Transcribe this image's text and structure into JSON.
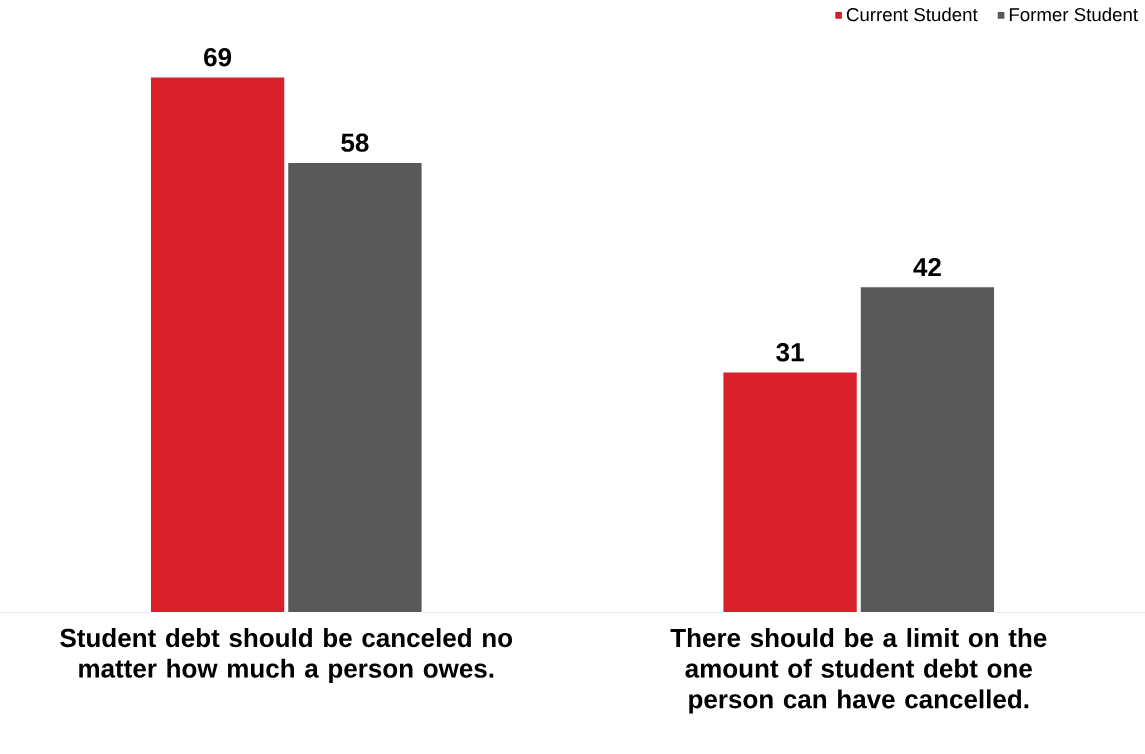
{
  "chart_data": {
    "type": "bar",
    "categories": [
      "**Student debt should be canceled no matter how much a person owes.**",
      "**There should be a limit on the amount of student debt one person can have cancelled.**"
    ],
    "series": [
      {
        "name": "Current Student",
        "color": "#d9202a",
        "values": [
          69,
          31
        ]
      },
      {
        "name": "Former Student",
        "color": "#595959",
        "values": [
          58,
          42
        ]
      }
    ],
    "data_labels": true,
    "legend": "top right"
  }
}
